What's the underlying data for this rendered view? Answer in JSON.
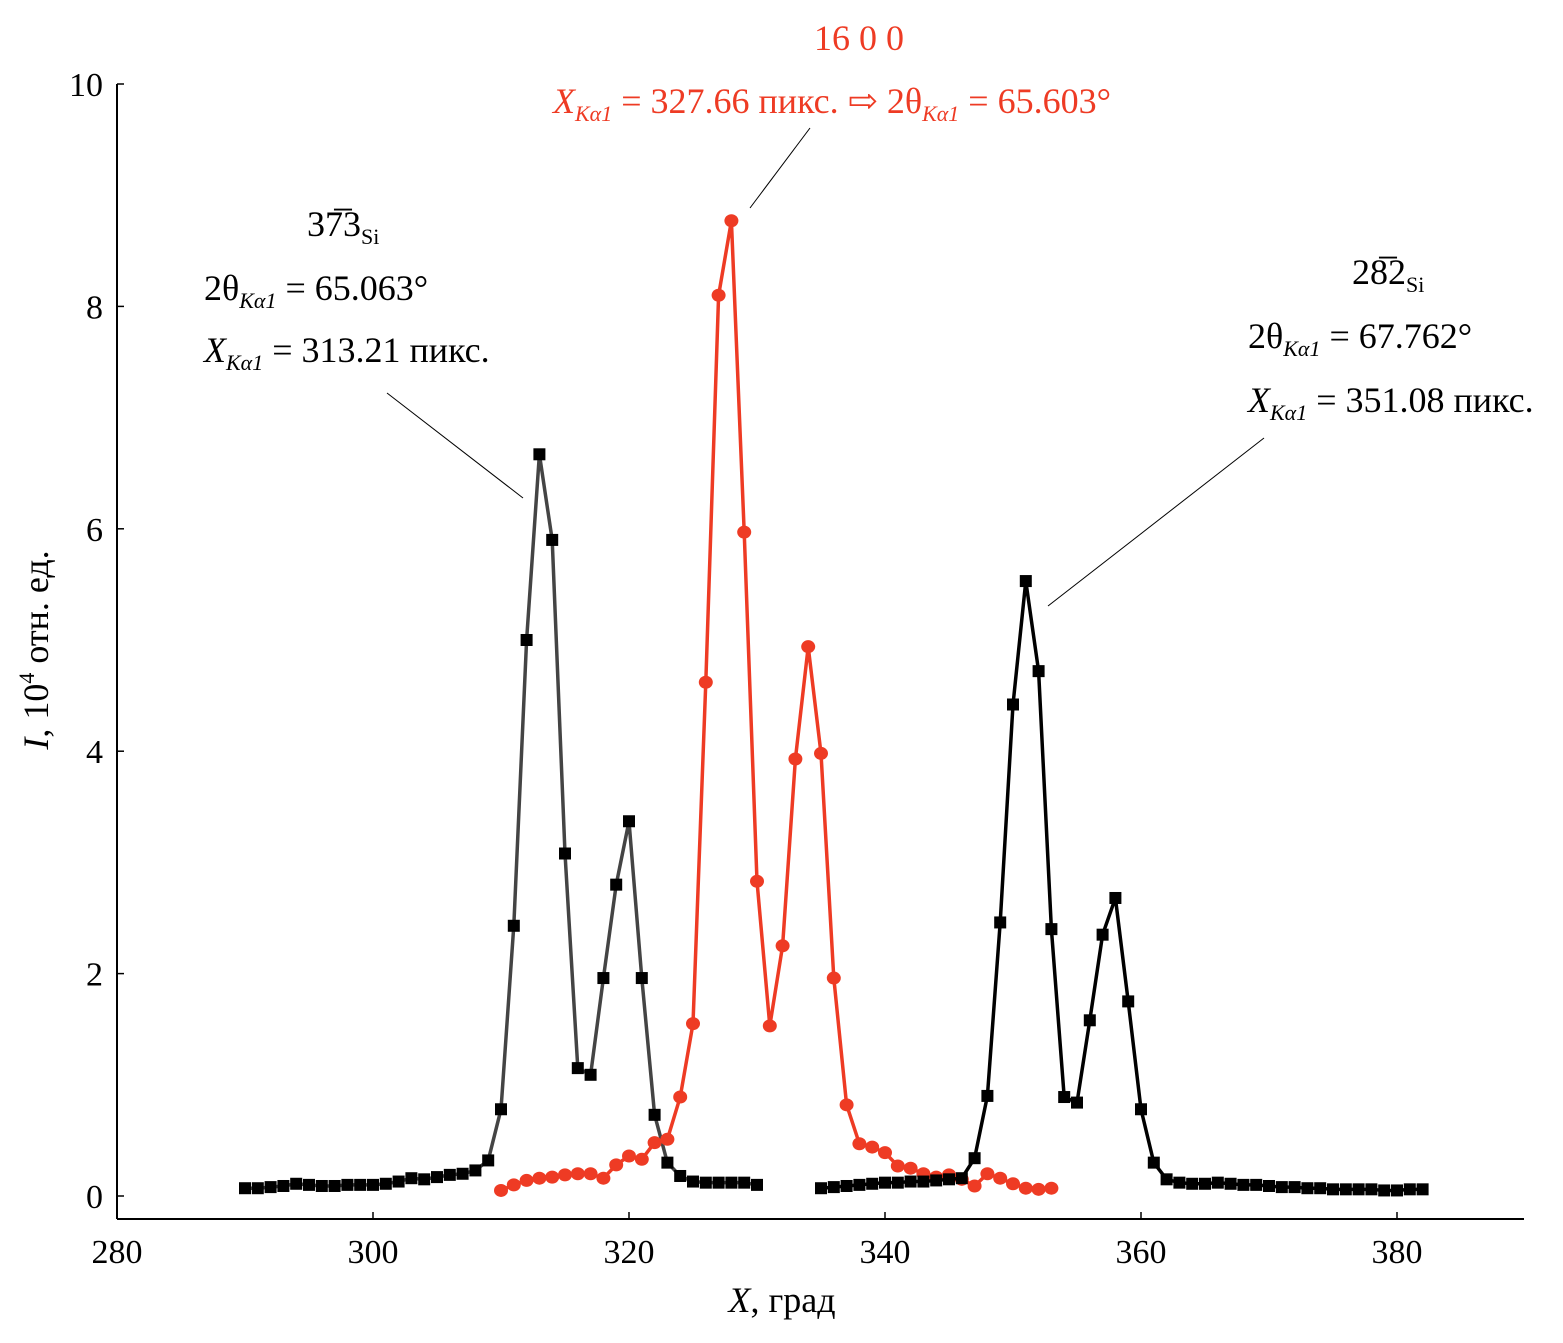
{
  "chart_data": {
    "type": "line",
    "xlabel": {
      "var": "X",
      "rest": ", град"
    },
    "ylabel": {
      "var": "I",
      "rest1": ", 10",
      "sup": "4",
      "rest2": " отн. ед."
    },
    "xlim": [
      280,
      390
    ],
    "ylim": [
      0,
      10
    ],
    "xticks": [
      "280",
      "300",
      "320",
      "340",
      "360",
      "380"
    ],
    "yticks": [
      "0",
      "2",
      "4",
      "6",
      "8",
      "10"
    ],
    "grid": false,
    "colors": {
      "left": "#444444",
      "red": "#ee3b24",
      "right": "#000000"
    },
    "series": [
      {
        "name": "37̅3 Si",
        "marker": "square",
        "color_key": "left",
        "x0": 290,
        "values": [
          0.07,
          0.07,
          0.08,
          0.09,
          0.11,
          0.1,
          0.09,
          0.09,
          0.1,
          0.1,
          0.1,
          0.11,
          0.13,
          0.16,
          0.15,
          0.17,
          0.19,
          0.2,
          0.23,
          0.32,
          0.78,
          2.43,
          5.0,
          6.67,
          5.9,
          3.08,
          1.15,
          1.09,
          1.96,
          2.8,
          3.37,
          1.96,
          0.73,
          0.3,
          0.18,
          0.13,
          0.12,
          0.12,
          0.12,
          0.12,
          0.1
        ]
      },
      {
        "name": "16 0 0",
        "marker": "circle",
        "color_key": "red",
        "x0": 310,
        "values": [
          0.05,
          0.1,
          0.14,
          0.16,
          0.17,
          0.19,
          0.2,
          0.2,
          0.16,
          0.28,
          0.36,
          0.33,
          0.48,
          0.51,
          0.89,
          1.55,
          4.62,
          8.1,
          8.77,
          5.97,
          2.83,
          1.53,
          2.25,
          3.93,
          4.94,
          3.98,
          1.96,
          0.82,
          0.47,
          0.44,
          0.39,
          0.27,
          0.25,
          0.2,
          0.17,
          0.19,
          0.15,
          0.09,
          0.2,
          0.16,
          0.11,
          0.07,
          0.06,
          0.07
        ]
      },
      {
        "name": "28̅2 Si",
        "marker": "square",
        "color_key": "right",
        "x0": 335,
        "values": [
          0.07,
          0.08,
          0.09,
          0.1,
          0.11,
          0.12,
          0.12,
          0.13,
          0.13,
          0.14,
          0.15,
          0.16,
          0.34,
          0.9,
          2.46,
          4.42,
          5.53,
          4.72,
          2.4,
          0.89,
          0.84,
          1.58,
          2.35,
          2.68,
          1.75,
          0.78,
          0.3,
          0.15,
          0.12,
          0.11,
          0.11,
          0.12,
          0.11,
          0.1,
          0.1,
          0.09,
          0.08,
          0.08,
          0.07,
          0.07,
          0.06,
          0.06,
          0.06,
          0.06,
          0.05,
          0.05,
          0.06,
          0.06
        ]
      }
    ],
    "annotations": {
      "left": {
        "hkl": "37̅3",
        "hkl_sub": "Si",
        "l1": {
          "a": "2θ",
          "sub": "Kα1",
          "b": " = 65.063°"
        },
        "l2": {
          "a": "X",
          "sub": "Kα1",
          "b": " = 313.21 пикс."
        }
      },
      "red": {
        "hkl": "16 0 0",
        "l1": {
          "a": "X",
          "sub": "Kα1",
          "b": " = 327.66 пикс. ",
          "arrow": "⇨",
          "c": " 2θ",
          "sub2": "Kα1",
          "d": " = 65.603°"
        }
      },
      "right": {
        "hkl": "28̅2",
        "hkl_sub": "Si",
        "l1": {
          "a": "2θ",
          "sub": "Kα1",
          "b": " = 67.762°"
        },
        "l2": {
          "a": "X",
          "sub": "Kα1",
          "b": " = 351.08 пикс."
        }
      }
    }
  }
}
